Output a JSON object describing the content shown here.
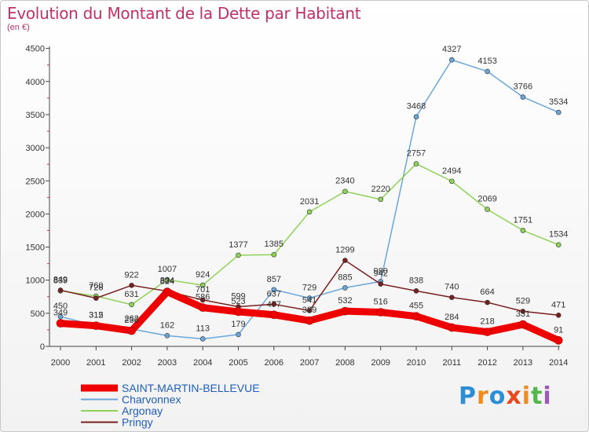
{
  "header": {
    "title": "Evolution du Montant de la Dette par Habitant",
    "subtitle": "(en €)"
  },
  "logo": {
    "text": "Proxiti",
    "letters": [
      "P",
      "r",
      "o",
      "x",
      "i",
      "t",
      "i"
    ],
    "colors": [
      "#2c8fd6",
      "#f08c1e",
      "#2c8fd6",
      "#e8491d",
      "#f08c1e",
      "#52b84a",
      "#9b59b6"
    ]
  },
  "chart_data": {
    "type": "line",
    "title": "Evolution du Montant de la Dette par Habitant",
    "subtitle": "(en €)",
    "x": [
      "2000",
      "2001",
      "2002",
      "2003",
      "2004",
      "2005",
      "2006",
      "2007",
      "2008",
      "2009",
      "2010",
      "2011",
      "2012",
      "2013",
      "2014"
    ],
    "ylim": [
      0,
      4500
    ],
    "yticks": [
      0,
      500,
      1000,
      1500,
      2000,
      2500,
      3000,
      3500,
      4000,
      4500
    ],
    "grid": false,
    "legend_position": "bottom-left",
    "series": [
      {
        "name": "SAINT-MARTIN-BELLEVUE",
        "color": "#ee0000",
        "thick": true,
        "values": [
          349,
          312,
          236,
          824,
          586,
          523,
          477,
          389,
          532,
          516,
          455,
          284,
          218,
          331,
          91
        ],
        "labels": [
          "349",
          "312",
          "236",
          "824",
          "586",
          "523",
          "477",
          "389",
          "532",
          "516",
          "455",
          "284",
          "218",
          "331",
          "91"
        ]
      },
      {
        "name": "Charvonnex",
        "color": "#6aa6da",
        "thick": false,
        "values": [
          450,
          315,
          262,
          162,
          113,
          179,
          857,
          729,
          885,
          980,
          3468,
          4327,
          4153,
          3766,
          3534
        ],
        "labels": [
          "450",
          "315",
          "262",
          "162",
          "113",
          "179",
          "857",
          "729",
          "885",
          "980",
          "3468",
          "4327",
          "4153",
          "3766",
          "3534"
        ]
      },
      {
        "name": "Argonay",
        "color": "#8ed258",
        "thick": false,
        "values": [
          839,
          760,
          631,
          1007,
          924,
          1377,
          1385,
          2031,
          2340,
          2220,
          2757,
          2494,
          2069,
          1751,
          1534
        ],
        "labels": [
          "839",
          "760",
          "631",
          "1007",
          "924",
          "1377",
          "1385",
          "2031",
          "2340",
          "2220",
          "2757",
          "2494",
          "2069",
          "1751",
          "1534"
        ]
      },
      {
        "name": "Pringy",
        "color": "#7a1f1f",
        "thick": false,
        "values": [
          849,
          728,
          922,
          834,
          701,
          599,
          637,
          541,
          1299,
          942,
          838,
          740,
          664,
          529,
          471
        ],
        "labels": [
          "849",
          "728",
          "922",
          "834",
          "701",
          "599",
          "637",
          "541",
          "1299",
          "942",
          "838",
          "740",
          "664",
          "529",
          "471"
        ]
      }
    ]
  }
}
